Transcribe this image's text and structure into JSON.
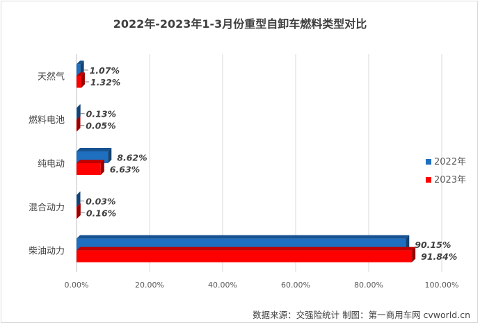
{
  "chart_data": {
    "type": "bar",
    "orientation": "horizontal",
    "title": "2022年-2023年1-3月份重型自卸车燃料类型对比",
    "categories": [
      "天然气",
      "燃料电池",
      "纯电动",
      "混合动力",
      "柴油动力"
    ],
    "series": [
      {
        "name": "2022年",
        "color": "#1f6fc0",
        "values": [
          1.07,
          0.13,
          8.62,
          0.03,
          90.15
        ],
        "labels": [
          "1.07%",
          "0.13%",
          "8.62%",
          "0.03%",
          "90.15%"
        ]
      },
      {
        "name": "2023年",
        "color": "#ff0000",
        "values": [
          1.32,
          0.05,
          6.63,
          0.16,
          91.84
        ],
        "labels": [
          "1.32%",
          "0.05%",
          "6.63%",
          "0.16%",
          "91.84%"
        ]
      }
    ],
    "xlim": [
      0,
      100
    ],
    "xticks": [
      "0.00%",
      "20.00%",
      "40.00%",
      "60.00%",
      "80.00%",
      "100.00%"
    ],
    "grid": true,
    "legend_position": "right"
  },
  "source": "数据来源：交强险统计    制图：第一商用车网 cvworld.cn"
}
